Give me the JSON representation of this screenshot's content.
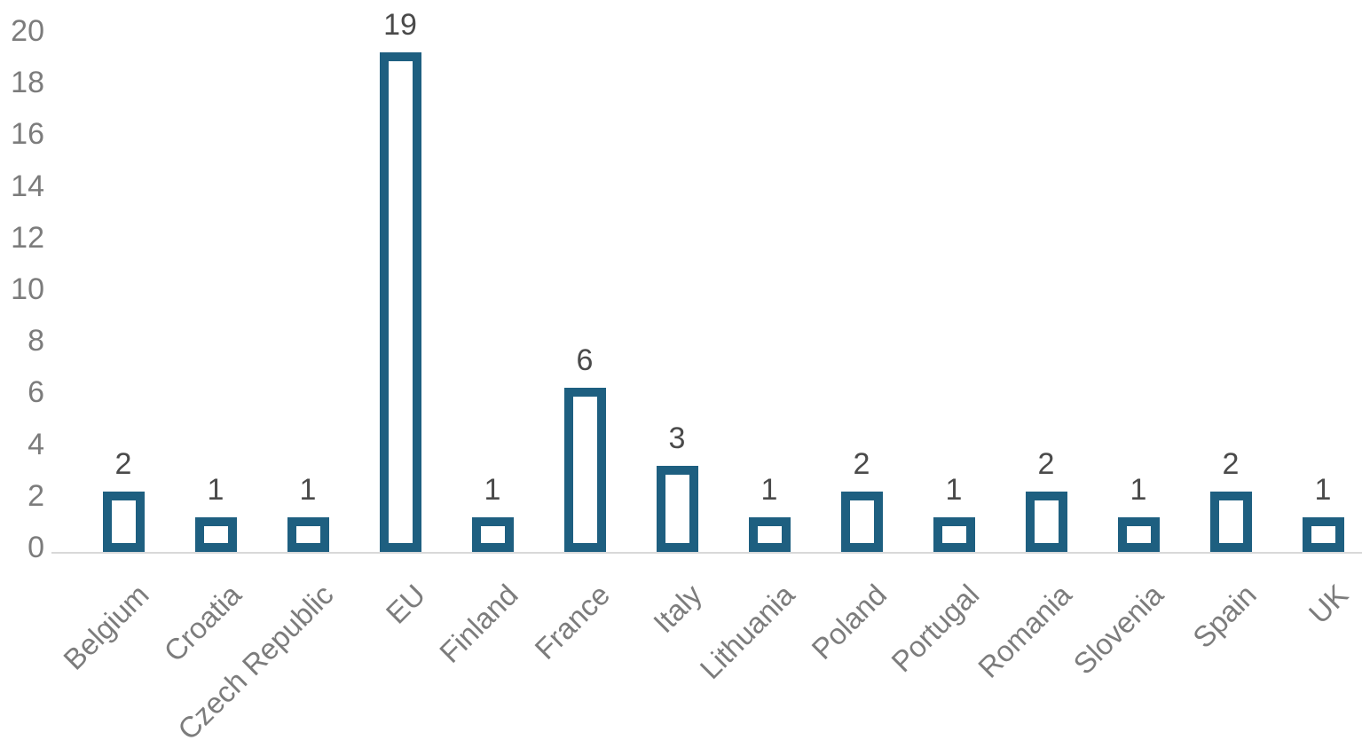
{
  "chart_data": {
    "type": "bar",
    "categories": [
      "Belgium",
      "Croatia",
      "Czech Republic",
      "EU",
      "Finland",
      "France",
      "Italy",
      "Lithuania",
      "Poland",
      "Portugal",
      "Romania",
      "Slovenia",
      "Spain",
      "UK"
    ],
    "values": [
      2,
      1,
      1,
      19,
      1,
      6,
      3,
      1,
      2,
      1,
      2,
      1,
      2,
      1
    ],
    "title": "",
    "xlabel": "",
    "ylabel": "",
    "ylim": [
      0,
      20
    ],
    "yticks": [
      0,
      2,
      4,
      6,
      8,
      10,
      12,
      14,
      16,
      18,
      20
    ],
    "grid": false,
    "legend": false,
    "bar_style": "hollow-outline",
    "data_labels_shown": true
  },
  "colors": {
    "bar_outline": "#1E5F80",
    "bar_fill": "#FFFFFF",
    "axis_line": "#D9D9D9",
    "y_tick_label": "#7C7C7C",
    "x_category_label": "#7C7C7C",
    "value_label": "#4A4A4A",
    "background": "#FFFFFF"
  }
}
